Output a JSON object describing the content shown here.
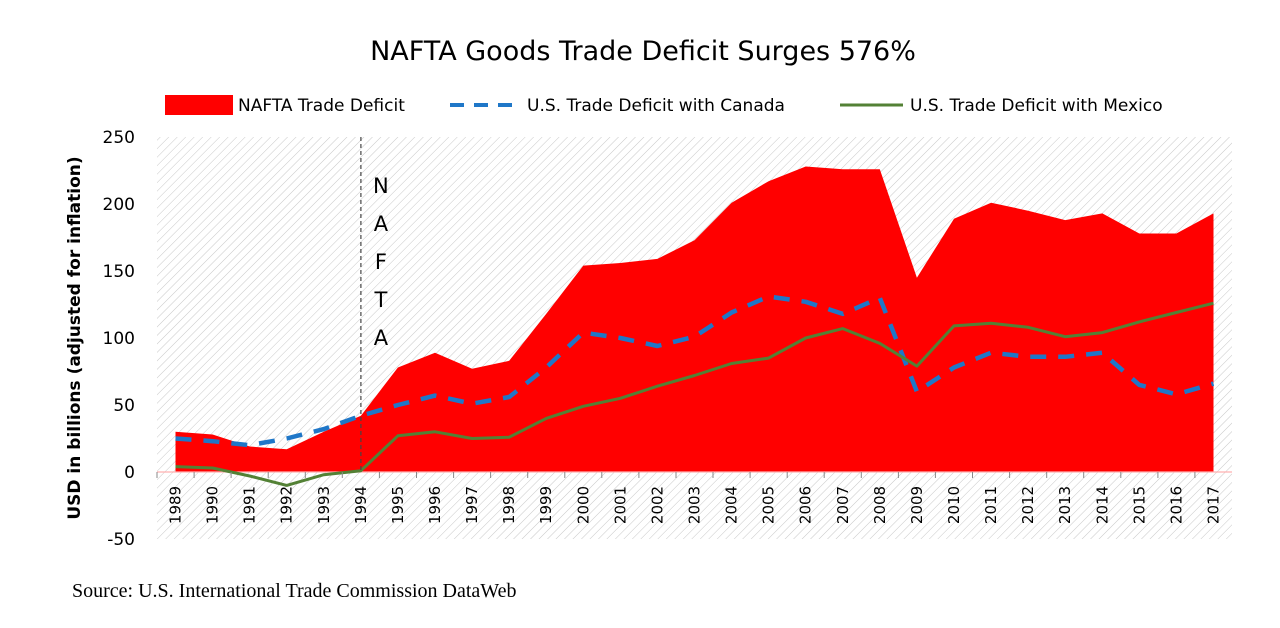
{
  "chart_data": {
    "type": "area",
    "title": "NAFTA Goods Trade Deficit Surges 576%",
    "ylabel": "USD in billions (adjusted for inflation)",
    "xlabel": "",
    "ylim": [
      -50,
      250
    ],
    "yticks": [
      -50,
      0,
      50,
      100,
      150,
      200,
      250
    ],
    "grid": "hatched background",
    "legend": "top",
    "categories": [
      "1989",
      "1990",
      "1991",
      "1992",
      "1993",
      "1994",
      "1995",
      "1996",
      "1997",
      "1998",
      "1999",
      "2000",
      "2001",
      "2002",
      "2003",
      "2004",
      "2005",
      "2006",
      "2007",
      "2008",
      "2009",
      "2010",
      "2011",
      "2012",
      "2013",
      "2014",
      "2015",
      "2016",
      "2017"
    ],
    "series": [
      {
        "name": "NAFTA Trade Deficit",
        "kind": "area",
        "color": "#ff0000",
        "values": [
          30,
          28,
          19,
          17,
          30,
          42,
          78,
          89,
          77,
          83,
          118,
          154,
          156,
          159,
          173,
          201,
          217,
          228,
          226,
          226,
          145,
          189,
          201,
          195,
          188,
          193,
          178,
          178,
          193
        ]
      },
      {
        "name": "U.S. Trade Deficit with Canada",
        "kind": "dashed-line",
        "color": "#1f77c8",
        "values": [
          25,
          23,
          20,
          25,
          32,
          42,
          50,
          57,
          51,
          56,
          78,
          104,
          100,
          94,
          101,
          119,
          131,
          127,
          118,
          130,
          60,
          78,
          89,
          86,
          86,
          89,
          65,
          58,
          66
        ]
      },
      {
        "name": "U.S. Trade Deficit with Mexico",
        "kind": "line",
        "color": "#538135",
        "values": [
          4,
          3,
          -3,
          -10,
          -2,
          1,
          27,
          30,
          25,
          26,
          40,
          49,
          55,
          64,
          72,
          81,
          85,
          100,
          107,
          96,
          79,
          109,
          111,
          108,
          101,
          104,
          112,
          119,
          126
        ]
      }
    ],
    "annotations": [
      {
        "label": "NAFTA",
        "at": "1994",
        "style": "dashed vertical line"
      }
    ]
  },
  "source": "Source: U.S. International Trade Commission DataWeb"
}
